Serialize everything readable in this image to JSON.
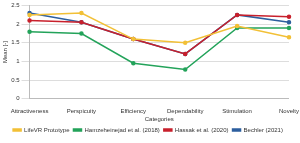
{
  "chart_data": {
    "type": "line",
    "x_label": "Categories",
    "y_label": "Mean [-]",
    "categories": [
      "Attractiveness",
      "Perspicuity",
      "Efficiency",
      "Dependability",
      "Stimulation",
      "Novelty"
    ],
    "series": [
      {
        "name": "LifeVR Prototype",
        "color": "#f2c037",
        "values": [
          2.25,
          2.3,
          1.6,
          1.5,
          1.95,
          1.65
        ]
      },
      {
        "name": "Hamzeheinejad et al. (2018)",
        "color": "#23a35a",
        "values": [
          1.8,
          1.75,
          0.95,
          0.78,
          1.9,
          1.9
        ]
      },
      {
        "name": "Hassak et al. (2020)",
        "color": "#c8202c",
        "values": [
          2.1,
          2.05,
          1.6,
          1.2,
          2.25,
          2.2
        ]
      },
      {
        "name": "Bechler (2021)",
        "color": "#2d5f9e",
        "values": [
          2.3,
          2.05,
          1.6,
          1.2,
          2.25,
          2.05
        ]
      }
    ],
    "ylim": [
      0,
      2.5
    ],
    "yticks": [
      0,
      0.5,
      1,
      1.5,
      2,
      2.5
    ],
    "grid": true,
    "legend": "bottom",
    "marker": "circle",
    "line_style": "solid"
  }
}
